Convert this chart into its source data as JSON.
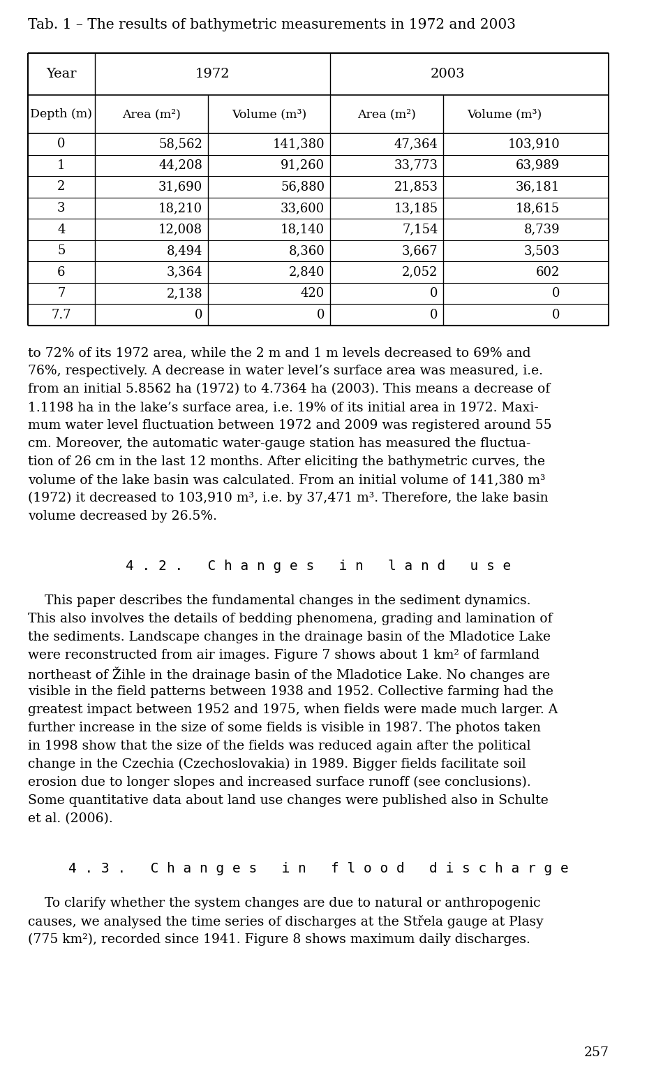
{
  "title": "Tab. 1 – The results of bathymetric measurements in 1972 and 2003",
  "table": {
    "header_row1": [
      "Year",
      "1972",
      "",
      "2003",
      ""
    ],
    "header_row2": [
      "Depth (m)",
      "Area (m²)",
      "Volume (m³)",
      "Area (m²)",
      "Volume (m³)"
    ],
    "data": [
      [
        "0",
        "58,562",
        "141,380",
        "47,364",
        "103,910"
      ],
      [
        "1",
        "44,208",
        "91,260",
        "33,773",
        "63,989"
      ],
      [
        "2",
        "31,690",
        "56,880",
        "21,853",
        "36,181"
      ],
      [
        "3",
        "18,210",
        "33,600",
        "13,185",
        "18,615"
      ],
      [
        "4",
        "12,008",
        "18,140",
        "7,154",
        "8,739"
      ],
      [
        "5",
        "8,494",
        "8,360",
        "3,667",
        "3,503"
      ],
      [
        "6",
        "3,364",
        "2,840",
        "2,052",
        "602"
      ],
      [
        "7",
        "2,138",
        "420",
        "0",
        "0"
      ],
      [
        "7.7",
        "0",
        "0",
        "0",
        "0"
      ]
    ]
  },
  "body_text_1": "to 72% of its 1972 area, while the 2 m and 1 m levels decreased to 69% and\n76%, respectively. A decrease in water level’s surface area was measured, i.e.\nfrom an initial 5.8562 ha (1972) to 4.7364 ha (2003). This means a decrease of\n1.1198 ha in the lake’s surface area, i.e. 19% of its initial area in 1972. Maxi-\nmum water level fluctuation between 1972 and 2009 was registered around 55\ncm. Moreover, the automatic water-gauge station has measured the fluctua-\ntion of 26 cm in the last 12 months. After eliciting the bathymetric curves, the\nvolume of the lake basin was calculated. From an initial volume of 141,380 m³\n(1972) it decreased to 103,910 m³, i.e. by 37,471 m³. Therefore, the lake basin\nvolume decreased by 26.5%.",
  "section_42": "4 . 2 .   C h a n g e s   i n   l a n d   u s e",
  "body_text_2": "    This paper describes the fundamental changes in the sediment dynamics.\nThis also involves the details of bedding phenomena, grading and lamination of\nthe sediments. Landscape changes in the drainage basin of the Mladotice Lake\nwere reconstructed from air images. Figure 7 shows about 1 km² of farmland\nnortheast of Žihle in the drainage basin of the Mladotice Lake. No changes are\nvisible in the field patterns between 1938 and 1952. Collective farming had the\ngreatest impact between 1952 and 1975, when fields were made much larger. A\nfurther increase in the size of some fields is visible in 1987. The photos taken\nin 1998 show that the size of the fields was reduced again after the political\nchange in the Czechia (Czechoslovakia) in 1989. Bigger fields facilitate soil\nerosion due to longer slopes and increased surface runoff (see conclusions).\nSome quantitative data about land use changes were published also in Schulte\net al. (2006).",
  "section_43": "4 . 3 .   C h a n g e s   i n   f l o o d   d i s c h a r g e",
  "body_text_3": "    To clarify whether the system changes are due to natural or anthropogenic\ncauses, we analysed the time series of discharges at the Střela gauge at Plasy\n(775 km²), recorded since 1941. Figure 8 shows maximum daily discharges.",
  "page_number": "257",
  "bg_color": "#ffffff",
  "text_color": "#000000",
  "font_family": "serif"
}
